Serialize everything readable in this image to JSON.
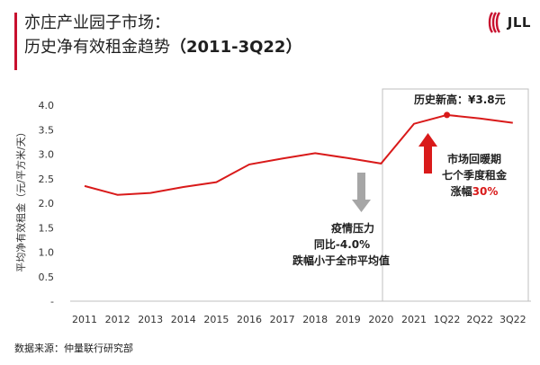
{
  "header": {
    "title_line1": "亦庄产业园子市场：",
    "title_line2_prefix": "历史净有效租金趋势",
    "title_line2_suffix": "（2011-3Q22）",
    "logo_text": "JLL"
  },
  "source": "数据来源：仲量联行研究部",
  "annotations": {
    "peak_label": "历史新高：¥3.8元",
    "decline_lines": [
      "疫情压力",
      "同比-4.0%",
      "跌幅小于全市平均值"
    ],
    "rise_lines": [
      "市场回暖期",
      "七个季度租金"
    ],
    "rise_prefix": "涨幅",
    "rise_value": "30%"
  },
  "colors": {
    "line": "#d91a1a",
    "accent": "#c8102e",
    "arrow_up": "#d91a1a",
    "arrow_down": "#a6a6a6",
    "axis_text": "#333333"
  },
  "chart_data": {
    "type": "line",
    "title": "",
    "xlabel": "",
    "ylabel": "平均净有效租金（元/平方米/天）",
    "categories": [
      "2011",
      "2012",
      "2013",
      "2014",
      "2015",
      "2016",
      "2017",
      "2018",
      "2019",
      "2020",
      "2021",
      "1Q22",
      "2Q22",
      "3Q22"
    ],
    "series": [
      {
        "name": "",
        "values": [
          2.35,
          2.17,
          2.21,
          2.33,
          2.43,
          2.79,
          2.91,
          3.02,
          2.92,
          2.81,
          3.62,
          3.8,
          3.73,
          3.64
        ]
      }
    ],
    "y_ticks": [
      "-",
      "0.5",
      "1.0",
      "1.5",
      "2.0",
      "2.5",
      "3.0",
      "3.5",
      "4.0"
    ],
    "ylim": [
      0,
      4.0
    ],
    "grid": false,
    "highlight_point": "1Q22"
  }
}
